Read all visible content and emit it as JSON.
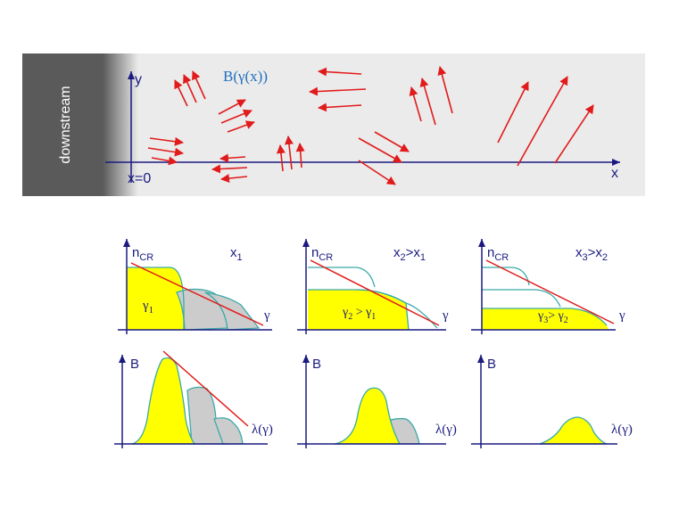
{
  "top_panel": {
    "side_label": "downstream",
    "y_axis": "y",
    "x_axis": "x",
    "origin": "x=0",
    "field_label": "B(γ(x))"
  },
  "panels": [
    {
      "n_label": "n",
      "n_sub": "CR",
      "pos_main": "x",
      "pos_sub": "1",
      "gamma_text": "γ",
      "gamma_sub": "1",
      "gamma_rest": "",
      "gamma_axis": "γ",
      "b_label": "B",
      "lambda_label": "λ(γ)"
    },
    {
      "n_label": "n",
      "n_sub": "CR",
      "pos_main": "x",
      "pos_sub": "2",
      "pos_rel": ">x",
      "pos_rel_sub": "1",
      "gamma_text": "γ",
      "gamma_sub": "2",
      "gamma_rest": " > γ",
      "gamma_rest_sub": "1",
      "gamma_axis": "γ",
      "b_label": "B",
      "lambda_label": "λ(γ)"
    },
    {
      "n_label": "n",
      "n_sub": "CR",
      "pos_main": "x",
      "pos_sub": "3",
      "pos_rel": ">x",
      "pos_rel_sub": "2",
      "gamma_text": "γ",
      "gamma_sub": "3",
      "gamma_rest": "> γ",
      "gamma_rest_sub": "2",
      "gamma_axis": "γ",
      "b_label": "B",
      "lambda_label": "λ(γ)"
    }
  ],
  "colors": {
    "axis": "#1a1a80",
    "arrow": "#e11b1b",
    "fill_yellow": "#ffff00",
    "fill_gray": "#cccccc",
    "curve_teal": "#3aaaa8",
    "panel_bg": "#ebebeb",
    "side_bg": "#5a5a5a"
  }
}
